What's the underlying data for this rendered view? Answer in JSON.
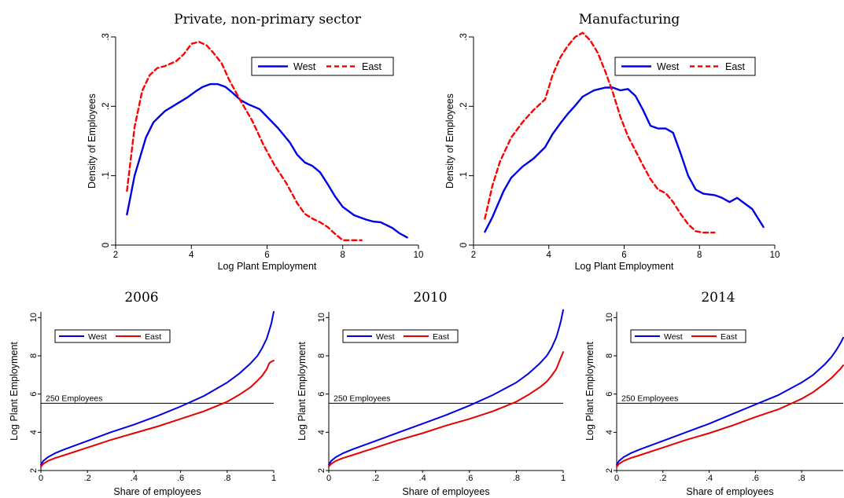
{
  "colors": {
    "west": "#0000e6",
    "east_density": "#ff0000",
    "east_line": "#e60000",
    "axis": "#000000",
    "refline": "#000000"
  },
  "chart_data": [
    {
      "type": "line",
      "title": "Private, non-primary sector",
      "xlabel": "Log Plant Employment",
      "ylabel": "Density of Employees",
      "xlim": [
        2,
        10
      ],
      "ylim": [
        0,
        0.3
      ],
      "xticks": [
        2,
        4,
        6,
        8,
        10
      ],
      "xtick_labels": [
        "2",
        "4",
        "6",
        "8",
        "10"
      ],
      "yticks": [
        0,
        0.1,
        0.2,
        0.3
      ],
      "ytick_labels": [
        "0",
        ".1",
        ".2",
        ".3"
      ],
      "legend": {
        "position": "top-right"
      },
      "series": [
        {
          "name": "West",
          "style": "solid",
          "color": "#0000e6",
          "x": [
            2.3,
            2.5,
            2.8,
            3.0,
            3.3,
            3.6,
            3.9,
            4.1,
            4.3,
            4.5,
            4.7,
            4.9,
            5.1,
            5.3,
            5.5,
            5.8,
            6.0,
            6.3,
            6.6,
            6.8,
            7.0,
            7.2,
            7.4,
            7.6,
            7.8,
            8.0,
            8.3,
            8.6,
            8.8,
            9.0,
            9.3,
            9.5,
            9.7
          ],
          "y": [
            0.044,
            0.1,
            0.155,
            0.177,
            0.193,
            0.203,
            0.213,
            0.221,
            0.228,
            0.232,
            0.232,
            0.228,
            0.219,
            0.209,
            0.203,
            0.196,
            0.185,
            0.168,
            0.148,
            0.13,
            0.119,
            0.114,
            0.105,
            0.088,
            0.07,
            0.055,
            0.043,
            0.037,
            0.034,
            0.033,
            0.025,
            0.017,
            0.011
          ]
        },
        {
          "name": "East",
          "style": "dashed",
          "color": "#ff0000",
          "x": [
            2.3,
            2.5,
            2.7,
            2.9,
            3.1,
            3.3,
            3.6,
            3.8,
            4.0,
            4.2,
            4.4,
            4.6,
            4.8,
            5.0,
            5.3,
            5.6,
            5.9,
            6.2,
            6.5,
            6.8,
            7.0,
            7.2,
            7.4,
            7.6,
            7.8,
            8.0,
            8.2,
            8.5
          ],
          "y": [
            0.078,
            0.17,
            0.222,
            0.245,
            0.255,
            0.258,
            0.265,
            0.275,
            0.29,
            0.293,
            0.288,
            0.276,
            0.262,
            0.238,
            0.208,
            0.18,
            0.145,
            0.115,
            0.09,
            0.06,
            0.045,
            0.038,
            0.033,
            0.026,
            0.016,
            0.007,
            0.007,
            0.007
          ]
        }
      ]
    },
    {
      "type": "line",
      "title": "Manufacturing",
      "xlabel": "Log Plant Employment",
      "ylabel": "Density of Employees",
      "xlim": [
        2,
        10
      ],
      "ylim": [
        0,
        0.3
      ],
      "xticks": [
        2,
        4,
        6,
        8,
        10
      ],
      "xtick_labels": [
        "2",
        "4",
        "6",
        "8",
        "10"
      ],
      "yticks": [
        0,
        0.1,
        0.2,
        0.3
      ],
      "ytick_labels": [
        "0",
        ".1",
        ".2",
        ".3"
      ],
      "legend": {
        "position": "top-right"
      },
      "series": [
        {
          "name": "West",
          "style": "solid",
          "color": "#0000e6",
          "x": [
            2.3,
            2.5,
            2.8,
            3.0,
            3.3,
            3.6,
            3.9,
            4.1,
            4.3,
            4.5,
            4.7,
            4.9,
            5.2,
            5.5,
            5.7,
            5.9,
            6.1,
            6.3,
            6.5,
            6.7,
            6.9,
            7.1,
            7.3,
            7.5,
            7.7,
            7.9,
            8.1,
            8.4,
            8.6,
            8.8,
            9.0,
            9.2,
            9.4,
            9.7
          ],
          "y": [
            0.019,
            0.04,
            0.078,
            0.097,
            0.113,
            0.125,
            0.141,
            0.16,
            0.175,
            0.189,
            0.201,
            0.214,
            0.223,
            0.227,
            0.227,
            0.223,
            0.225,
            0.215,
            0.195,
            0.172,
            0.168,
            0.168,
            0.162,
            0.132,
            0.1,
            0.08,
            0.074,
            0.072,
            0.068,
            0.062,
            0.068,
            0.06,
            0.052,
            0.026
          ]
        },
        {
          "name": "East",
          "style": "dashed",
          "color": "#ff0000",
          "x": [
            2.3,
            2.5,
            2.7,
            3.0,
            3.3,
            3.6,
            3.9,
            4.1,
            4.3,
            4.5,
            4.7,
            4.9,
            5.1,
            5.3,
            5.5,
            5.7,
            5.9,
            6.1,
            6.3,
            6.5,
            6.7,
            6.9,
            7.1,
            7.3,
            7.5,
            7.7,
            7.9,
            8.1,
            8.3,
            8.4
          ],
          "y": [
            0.038,
            0.085,
            0.12,
            0.155,
            0.177,
            0.195,
            0.21,
            0.245,
            0.27,
            0.287,
            0.3,
            0.306,
            0.295,
            0.277,
            0.25,
            0.22,
            0.185,
            0.157,
            0.136,
            0.115,
            0.095,
            0.08,
            0.075,
            0.062,
            0.045,
            0.03,
            0.02,
            0.018,
            0.018,
            0.018
          ]
        }
      ]
    },
    {
      "type": "line",
      "title": "2006",
      "xlabel": "Share of employees",
      "ylabel": "Log Plant Employment",
      "xlim": [
        0,
        1
      ],
      "ylim": [
        2,
        10.3
      ],
      "xticks": [
        0,
        0.2,
        0.4,
        0.6,
        0.8,
        1
      ],
      "xtick_labels": [
        "0",
        ".2",
        ".4",
        ".6",
        ".8",
        "1"
      ],
      "yticks": [
        2,
        4,
        6,
        8,
        10
      ],
      "ytick_labels": [
        "2",
        "4",
        "6",
        "8",
        "10"
      ],
      "reference_line": {
        "y": 5.52,
        "label": "250 Employees"
      },
      "legend": {
        "position": "top-left"
      },
      "series": [
        {
          "name": "West",
          "color": "#0000e6",
          "x": [
            0,
            0.01,
            0.03,
            0.06,
            0.1,
            0.2,
            0.3,
            0.4,
            0.5,
            0.6,
            0.7,
            0.8,
            0.85,
            0.9,
            0.93,
            0.95,
            0.97,
            0.98,
            0.99,
            1.0
          ],
          "y": [
            2.3,
            2.5,
            2.7,
            2.9,
            3.1,
            3.55,
            4.0,
            4.4,
            4.85,
            5.35,
            5.9,
            6.6,
            7.05,
            7.6,
            8.0,
            8.4,
            8.9,
            9.3,
            9.7,
            10.3
          ]
        },
        {
          "name": "East",
          "color": "#e60000",
          "x": [
            0,
            0.01,
            0.03,
            0.06,
            0.1,
            0.2,
            0.3,
            0.4,
            0.5,
            0.6,
            0.7,
            0.8,
            0.85,
            0.9,
            0.93,
            0.95,
            0.97,
            0.98,
            0.99,
            1.0
          ],
          "y": [
            2.2,
            2.35,
            2.5,
            2.65,
            2.8,
            3.2,
            3.6,
            3.95,
            4.3,
            4.7,
            5.1,
            5.6,
            5.95,
            6.35,
            6.7,
            6.95,
            7.3,
            7.6,
            7.7,
            7.75
          ]
        }
      ]
    },
    {
      "type": "line",
      "title": "2010",
      "xlabel": "Share of employees",
      "ylabel": "Log Plant Employment",
      "xlim": [
        0,
        1
      ],
      "ylim": [
        2,
        10.3
      ],
      "xticks": [
        0,
        0.2,
        0.4,
        0.6,
        0.8,
        1
      ],
      "xtick_labels": [
        "0",
        ".2",
        ".4",
        ".6",
        ".8",
        "1"
      ],
      "yticks": [
        2,
        4,
        6,
        8,
        10
      ],
      "ytick_labels": [
        "2",
        "4",
        "6",
        "8",
        "10"
      ],
      "reference_line": {
        "y": 5.52,
        "label": "250 Employees"
      },
      "legend": {
        "position": "top-left"
      },
      "series": [
        {
          "name": "West",
          "color": "#0000e6",
          "x": [
            0,
            0.01,
            0.03,
            0.06,
            0.1,
            0.2,
            0.3,
            0.4,
            0.5,
            0.6,
            0.7,
            0.8,
            0.85,
            0.9,
            0.93,
            0.95,
            0.97,
            0.98,
            0.99,
            1.0
          ],
          "y": [
            2.3,
            2.5,
            2.7,
            2.9,
            3.1,
            3.55,
            4.0,
            4.45,
            4.9,
            5.4,
            5.95,
            6.6,
            7.05,
            7.6,
            8.0,
            8.4,
            8.95,
            9.35,
            9.8,
            10.4
          ]
        },
        {
          "name": "East",
          "color": "#e60000",
          "x": [
            0,
            0.01,
            0.03,
            0.06,
            0.1,
            0.2,
            0.3,
            0.4,
            0.5,
            0.6,
            0.7,
            0.8,
            0.85,
            0.9,
            0.93,
            0.95,
            0.97,
            0.98,
            0.99,
            1.0
          ],
          "y": [
            2.2,
            2.35,
            2.5,
            2.65,
            2.8,
            3.2,
            3.6,
            3.95,
            4.35,
            4.7,
            5.1,
            5.6,
            5.95,
            6.35,
            6.65,
            6.95,
            7.3,
            7.6,
            7.9,
            8.2
          ]
        }
      ]
    },
    {
      "type": "line",
      "title": "2014",
      "xlabel": "Share of employees",
      "ylabel": "Log Plant Employment",
      "xlim": [
        0,
        0.98
      ],
      "ylim": [
        2,
        10.3
      ],
      "xticks": [
        0,
        0.2,
        0.4,
        0.6,
        0.8
      ],
      "xtick_labels": [
        "0",
        ".2",
        ".4",
        ".6",
        ".8"
      ],
      "yticks": [
        2,
        4,
        6,
        8,
        10
      ],
      "ytick_labels": [
        "2",
        "4",
        "6",
        "8",
        "10"
      ],
      "reference_line": {
        "y": 5.52,
        "label": "250 Employees"
      },
      "legend": {
        "position": "top-left"
      },
      "series": [
        {
          "name": "West",
          "color": "#0000e6",
          "x": [
            0,
            0.01,
            0.03,
            0.06,
            0.1,
            0.2,
            0.3,
            0.4,
            0.5,
            0.6,
            0.7,
            0.8,
            0.85,
            0.9,
            0.93,
            0.95,
            0.97,
            0.98
          ],
          "y": [
            2.3,
            2.5,
            2.7,
            2.9,
            3.1,
            3.55,
            4.0,
            4.45,
            4.95,
            5.45,
            5.95,
            6.6,
            7.0,
            7.55,
            7.95,
            8.3,
            8.7,
            8.95
          ]
        },
        {
          "name": "East",
          "color": "#e60000",
          "x": [
            0,
            0.01,
            0.03,
            0.06,
            0.1,
            0.2,
            0.3,
            0.4,
            0.5,
            0.6,
            0.7,
            0.8,
            0.85,
            0.9,
            0.93,
            0.95,
            0.97,
            0.98
          ],
          "y": [
            2.2,
            2.35,
            2.5,
            2.65,
            2.8,
            3.2,
            3.6,
            3.95,
            4.35,
            4.8,
            5.2,
            5.75,
            6.1,
            6.55,
            6.85,
            7.1,
            7.35,
            7.5
          ]
        }
      ]
    }
  ]
}
